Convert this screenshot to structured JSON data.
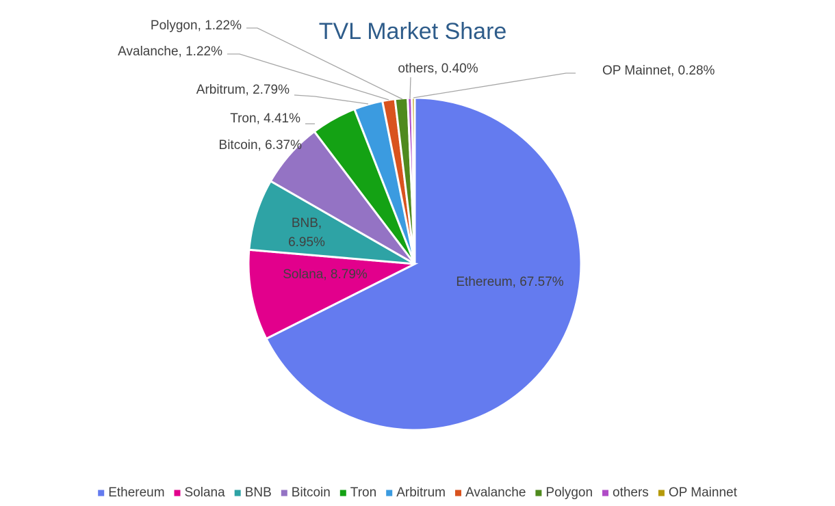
{
  "chart_data": {
    "type": "pie",
    "title": "TVL Market Share",
    "legend_position": "bottom",
    "slices": [
      {
        "name": "Ethereum",
        "value": 67.57,
        "label": "Ethereum, 67.57%",
        "color": "#647bef"
      },
      {
        "name": "Solana",
        "value": 8.79,
        "label": "Solana, 8.79%",
        "color": "#e2008c"
      },
      {
        "name": "BNB",
        "value": 6.95,
        "label": "BNB,\n6.95%",
        "color": "#2ea3a5"
      },
      {
        "name": "Bitcoin",
        "value": 6.37,
        "label": "Bitcoin, 6.37%",
        "color": "#9473c4"
      },
      {
        "name": "Tron",
        "value": 4.41,
        "label": "Tron, 4.41%",
        "color": "#14a214"
      },
      {
        "name": "Arbitrum",
        "value": 2.79,
        "label": "Arbitrum, 2.79%",
        "color": "#3b9be0"
      },
      {
        "name": "Avalanche",
        "value": 1.22,
        "label": "Avalanche, 1.22%",
        "color": "#d9531e"
      },
      {
        "name": "Polygon",
        "value": 1.22,
        "label": "Polygon, 1.22%",
        "color": "#4f8a1e"
      },
      {
        "name": "others",
        "value": 0.4,
        "label": "others, 0.40%",
        "color": "#b04cc7"
      },
      {
        "name": "OP Mainnet",
        "value": 0.28,
        "label": "OP Mainnet, 0.28%",
        "color": "#b59a0a"
      }
    ]
  }
}
